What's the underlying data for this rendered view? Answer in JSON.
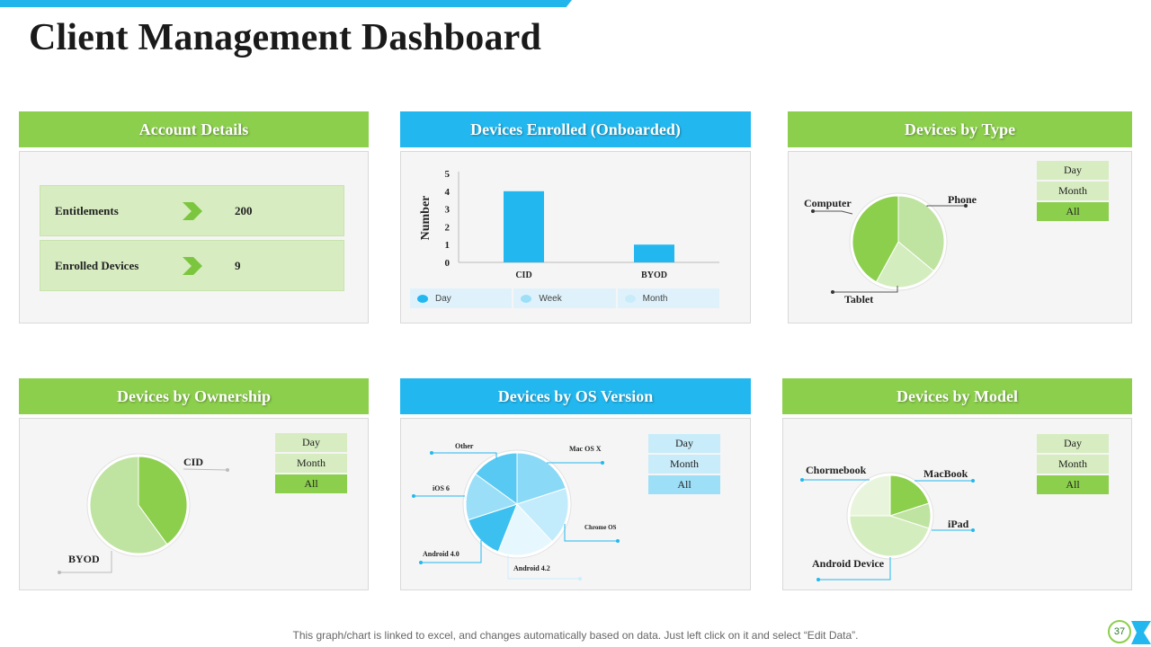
{
  "title": "Client Management Dashboard",
  "colors": {
    "accent_blue": "#22b8ef",
    "accent_green": "#8ccf4c",
    "light_green": "#d7edc1"
  },
  "account_details": {
    "header": "Account Details",
    "rows": [
      {
        "label": "Entitlements",
        "value": "200"
      },
      {
        "label": "Enrolled Devices",
        "value": "9"
      }
    ]
  },
  "devices_enrolled": {
    "header": "Devices Enrolled (Onboarded)",
    "legend": [
      "Day",
      "Week",
      "Month"
    ]
  },
  "devices_by_type": {
    "header": "Devices by Type",
    "filters": [
      "Day",
      "Month",
      "All"
    ],
    "labels": [
      "Computer",
      "Phone",
      "Tablet"
    ]
  },
  "devices_by_ownership": {
    "header": "Devices by Ownership",
    "filters": [
      "Day",
      "Month",
      "All"
    ],
    "labels": [
      "CID",
      "BYOD"
    ]
  },
  "devices_by_os": {
    "header": "Devices by OS Version",
    "filters": [
      "Day",
      "Month",
      "All"
    ],
    "labels": [
      "Other",
      "Mac OS X",
      "iOS 6",
      "Chrome OS",
      "Android 4.0",
      "Android 4.2"
    ]
  },
  "devices_by_model": {
    "header": "Devices by Model",
    "filters": [
      "Day",
      "Month",
      "All"
    ],
    "labels": [
      "Chormebook",
      "MacBook",
      "iPad",
      "Android Device"
    ]
  },
  "chart_data": [
    {
      "type": "bar",
      "categories": [
        "CID",
        "BYOD"
      ],
      "values": [
        4,
        1
      ],
      "ylabel": "Number",
      "ylim": [
        0,
        5
      ],
      "yticks": [
        "0",
        "1",
        "2",
        "3",
        "4",
        "5"
      ],
      "color": "#22b8ef"
    },
    {
      "type": "pie",
      "labels": [
        "Phone",
        "Tablet",
        "Computer"
      ],
      "values": [
        36,
        22,
        42
      ],
      "colors": [
        "#bfe3a0",
        "#d4edbf",
        "#8ccf4c"
      ]
    },
    {
      "type": "pie",
      "labels": [
        "CID",
        "BYOD"
      ],
      "values": [
        40,
        60
      ],
      "colors": [
        "#8ccf4c",
        "#bfe3a0"
      ]
    },
    {
      "type": "pie",
      "labels": [
        "Mac OS X",
        "Chrome OS",
        "Android 4.2",
        "Android 4.0",
        "iOS 6",
        "Other"
      ],
      "values": [
        20,
        18,
        18,
        14,
        15,
        15
      ],
      "colors": [
        "#8ad9f7",
        "#c2ebfb",
        "#e6f7fe",
        "#3cc0ef",
        "#9adff7",
        "#57c9f2"
      ]
    },
    {
      "type": "pie",
      "labels": [
        "MacBook",
        "iPad",
        "Android Device",
        "Chormebook"
      ],
      "values": [
        20,
        10,
        45,
        25
      ],
      "colors": [
        "#8ccf4c",
        "#bfe3a0",
        "#d4edbf",
        "#e8f5dc"
      ]
    }
  ],
  "footer": "This graph/chart is linked to excel, and changes automatically based on data. Just left click on it and select “Edit Data”.",
  "page_number": "37"
}
